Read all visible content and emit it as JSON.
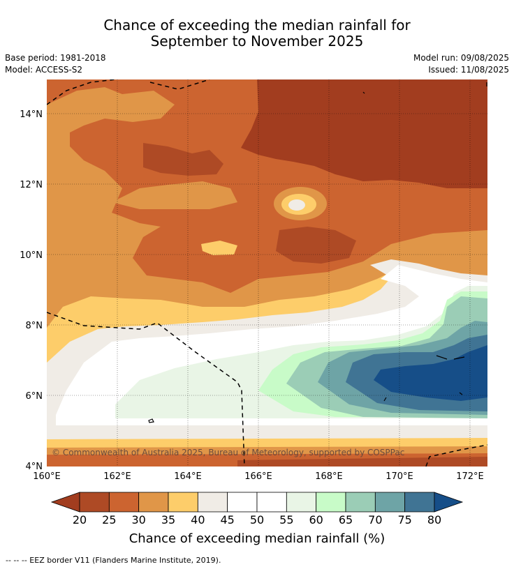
{
  "header": {
    "title_line1": "Chance of exceeding the median rainfall for",
    "title_line2": "September to November 2025",
    "base_period": "Base period: 1981-2018",
    "model": "Model: ACCESS-S2",
    "model_run": "Model run: 09/08/2025",
    "issued": "Issued: 11/08/2025"
  },
  "map": {
    "x_ticks": [
      "160°E",
      "162°E",
      "164°E",
      "166°E",
      "168°E",
      "170°E",
      "172°E"
    ],
    "y_ticks": [
      "14°N",
      "12°N",
      "10°N",
      "8°N",
      "6°N",
      "4°N"
    ],
    "copyright": "© Commonwealth of Australia 2025, Bureau of Meteorology, supported by COSPPac"
  },
  "colorbar": {
    "labels": [
      "20",
      "25",
      "30",
      "35",
      "40",
      "45",
      "50",
      "55",
      "60",
      "65",
      "70",
      "75",
      "80"
    ],
    "title": "Chance of exceeding median rainfall (%)",
    "colors": {
      "lt20": "#a23d1f",
      "c20_25": "#ae4a25",
      "c25_30": "#cc6430",
      "c30_35": "#e09648",
      "c35_40": "#fdcd6a",
      "c40_45": "#f0ece6",
      "c45_50": "#ffffff",
      "c50_55": "#ffffff",
      "c55_60": "#e9f5e6",
      "c60_65": "#c8fbc8",
      "c65_70": "#9bcdb6",
      "c70_75": "#6ea4a6",
      "c75_80": "#407494",
      "gt80": "#164e88"
    }
  },
  "footer": {
    "legend": "--  --  -- EEZ border V11 (Flanders Marine Institute, 2019)."
  }
}
